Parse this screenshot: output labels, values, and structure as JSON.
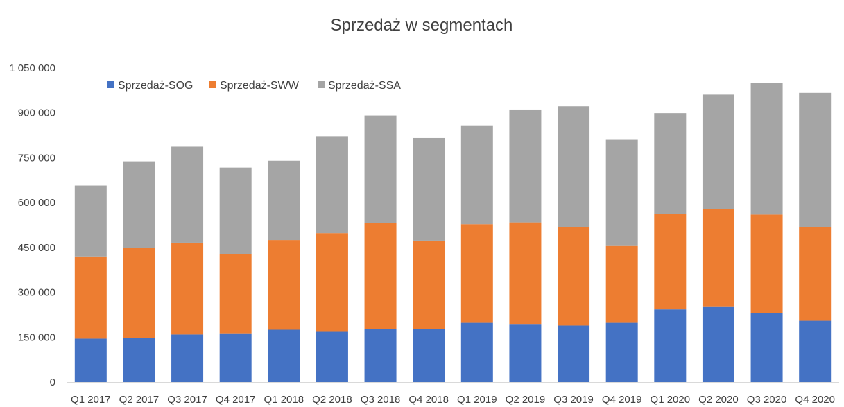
{
  "chart_data": {
    "type": "bar",
    "stacked": true,
    "title": "Sprzedaż w segmentach",
    "xlabel": "",
    "ylabel": "",
    "ylim": [
      0,
      1050000
    ],
    "yticks": [
      0,
      150000,
      300000,
      450000,
      600000,
      750000,
      900000,
      1050000
    ],
    "ytick_labels": [
      "0",
      "150 000",
      "300 000",
      "450 000",
      "600 000",
      "750 000",
      "900 000",
      "1 050 000"
    ],
    "grid": false,
    "legend_position": "top-left",
    "categories": [
      "Q1 2017",
      "Q2 2017",
      "Q3 2017",
      "Q4 2017",
      "Q1 2018",
      "Q2 2018",
      "Q3 2018",
      "Q4 2018",
      "Q1 2019",
      "Q2 2019",
      "Q3 2019",
      "Q4 2019",
      "Q1 2020",
      "Q2 2020",
      "Q3 2020",
      "Q4 2020"
    ],
    "series": [
      {
        "name": "Sprzedaż-SOG",
        "color": "#4472C4",
        "values": [
          145000,
          147000,
          159000,
          163000,
          175000,
          168000,
          178000,
          178000,
          198000,
          192000,
          189000,
          198000,
          243000,
          251000,
          230000,
          205000
        ]
      },
      {
        "name": "Sprzedaż-SWW",
        "color": "#ED7D31",
        "values": [
          275000,
          301000,
          307000,
          265000,
          300000,
          330000,
          354000,
          295000,
          330000,
          342000,
          330000,
          257000,
          320000,
          327000,
          330000,
          313000
        ]
      },
      {
        "name": "Sprzedaż-SSA",
        "color": "#A5A5A5",
        "values": [
          237000,
          290000,
          321000,
          289000,
          265000,
          324000,
          359000,
          343000,
          328000,
          377000,
          403000,
          355000,
          336000,
          383000,
          441000,
          449000
        ]
      }
    ]
  }
}
